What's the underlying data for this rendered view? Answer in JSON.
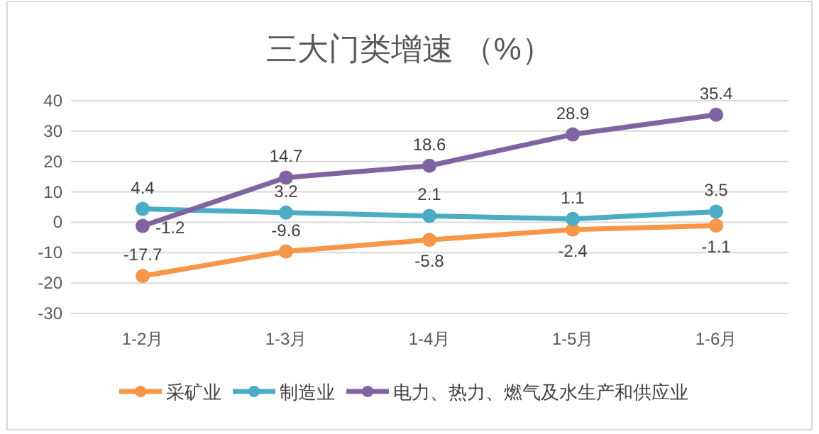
{
  "chart_data": {
    "type": "line",
    "title": "三大门类增速 （%）",
    "categories": [
      "1-2月",
      "1-3月",
      "1-4月",
      "1-5月",
      "1-6月"
    ],
    "series": [
      {
        "name": "采矿业",
        "color": "#f79646",
        "values": [
          -17.7,
          -9.6,
          -5.8,
          -2.4,
          -1.1
        ]
      },
      {
        "name": "制造业",
        "color": "#4bacc6",
        "values": [
          4.4,
          3.2,
          2.1,
          1.1,
          3.5
        ]
      },
      {
        "name": "电力、热力、燃气及水生产和供应业",
        "color": "#8064a2",
        "values": [
          -1.2,
          14.7,
          18.6,
          28.9,
          35.4
        ]
      }
    ],
    "ylim": [
      -30,
      40
    ],
    "yticks": [
      -30,
      -20,
      -10,
      0,
      10,
      20,
      30,
      40
    ],
    "grid": "y",
    "legend": "bottom",
    "marker": "circle",
    "line_style": "solid",
    "data_labels": true
  }
}
